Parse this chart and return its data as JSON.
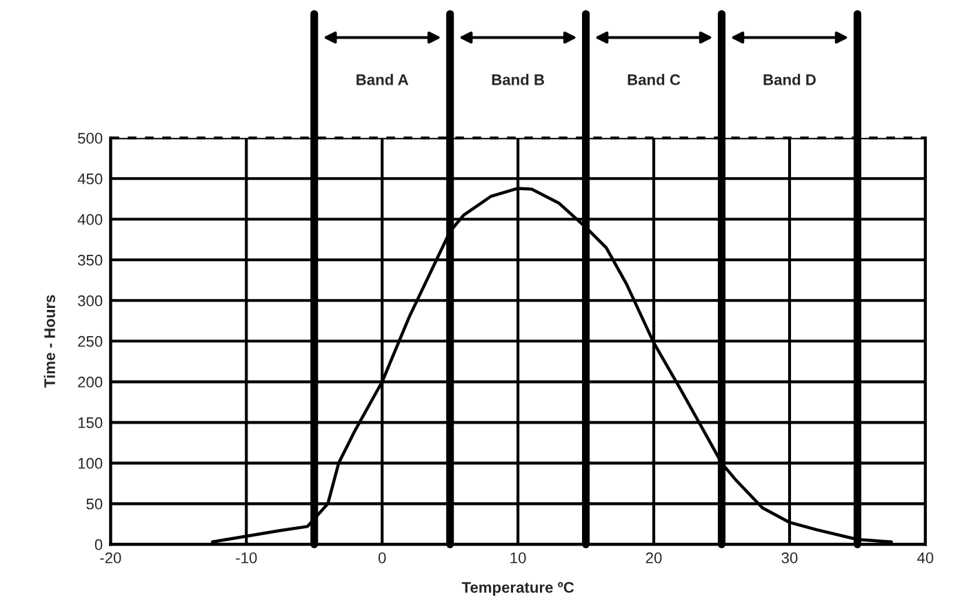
{
  "chart_data": {
    "type": "line",
    "xlabel": "Temperature ºC",
    "ylabel": "Time - Hours",
    "series": [
      {
        "color": "#000000",
        "x": [
          -12.5,
          -10,
          -7.5,
          -5.5,
          -4,
          -3.2,
          -2,
          0,
          2,
          4,
          5,
          6,
          8,
          10,
          11,
          13,
          15,
          16.5,
          18,
          20,
          22,
          24,
          25,
          26,
          28,
          30,
          32,
          35,
          37.5
        ],
        "values": [
          3,
          10,
          17,
          22,
          50,
          100,
          140,
          200,
          280,
          350,
          385,
          405,
          428,
          438,
          437,
          420,
          390,
          365,
          320,
          248,
          190,
          130,
          100,
          80,
          45,
          27,
          18,
          6,
          3
        ]
      }
    ],
    "xlim": [
      -20,
      40
    ],
    "xticks": [
      -20,
      -10,
      0,
      10,
      20,
      30,
      40
    ],
    "ylim": [
      0,
      500
    ],
    "yticks": [
      0,
      50,
      100,
      150,
      200,
      250,
      300,
      350,
      400,
      450,
      500
    ],
    "grid": true,
    "legend": false,
    "marker": "none",
    "line_style": "solid",
    "ref_lines": [
      {
        "axis": "x",
        "value": -5,
        "color": "#000000"
      },
      {
        "axis": "x",
        "value": 5,
        "color": "#000000"
      },
      {
        "axis": "x",
        "value": 15,
        "color": "#000000"
      },
      {
        "axis": "x",
        "value": 25,
        "color": "#000000"
      },
      {
        "axis": "x",
        "value": 35,
        "color": "#000000"
      },
      {
        "axis": "y",
        "value": 500,
        "color": "#000000",
        "line_style": "dashed"
      }
    ],
    "annotations": [
      "Band A",
      "Band B",
      "Band C",
      "Band D"
    ]
  }
}
